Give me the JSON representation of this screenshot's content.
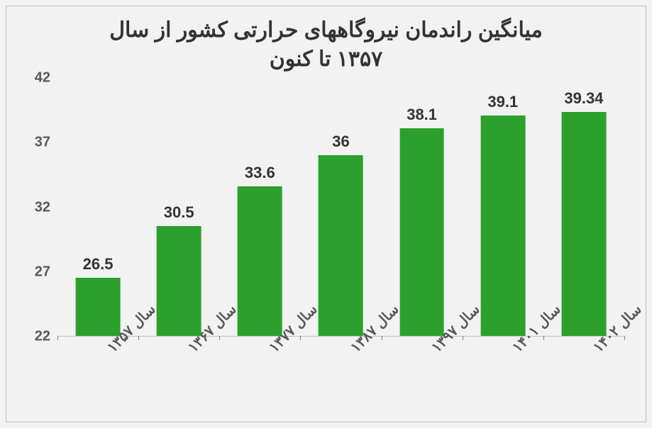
{
  "chart": {
    "type": "bar",
    "title_line1": "میانگین راندمان نیروگاههای حرارتی کشور از سال",
    "title_line2": "۱۳۵۷ تا کنون",
    "title_fontsize": 30,
    "title_color": "#333333",
    "background_color": "#f2f2f2",
    "border_color": "#bfbfbf",
    "axis_color": "#bfbfbf",
    "ylim_min": 22,
    "ylim_max": 42,
    "ytick_step": 5,
    "yticks": [
      22,
      27,
      32,
      37,
      42
    ],
    "label_fontsize": 20,
    "label_color": "#595959",
    "datalabel_fontsize": 22,
    "datalabel_color": "#333333",
    "bar_color": "#2ca02c",
    "bar_width_ratio": 0.55,
    "categories": [
      "سال ۱۳۵۷",
      "سال ۱۳۶۷",
      "سال ۱۳۷۷",
      "سال ۱۳۸۷",
      "سال ۱۳۹۷",
      "سال ۱۴۰۱",
      "سال ۱۴۰۲"
    ],
    "values": [
      26.5,
      30.5,
      33.6,
      36,
      38.1,
      39.1,
      39.34
    ],
    "value_labels": [
      "26.5",
      "30.5",
      "33.6",
      "36",
      "38.1",
      "39.1",
      "39.34"
    ],
    "x_label_rotation_deg": -45
  }
}
